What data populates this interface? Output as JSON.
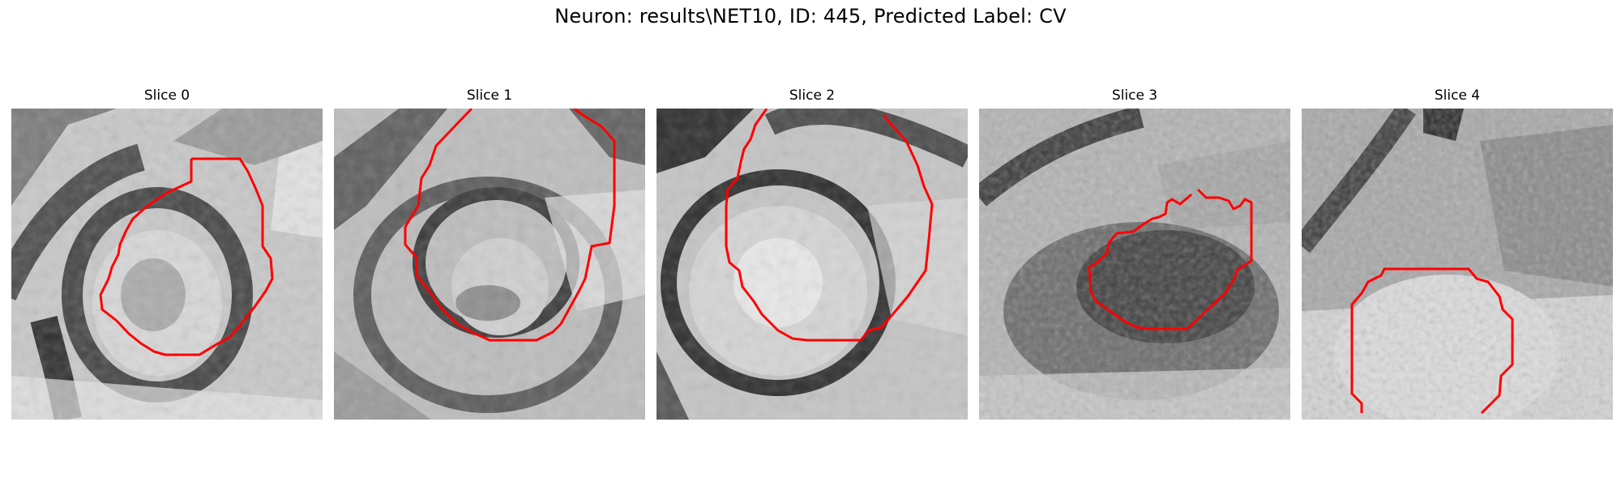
{
  "figure": {
    "title": "Neuron: results\\NET10, ID: 445, Predicted Label: CV",
    "contour_color": "#ff0000"
  },
  "panels": [
    {
      "title": "Slice 0"
    },
    {
      "title": "Slice 1"
    },
    {
      "title": "Slice 2"
    },
    {
      "title": "Slice 3"
    },
    {
      "title": "Slice 4"
    }
  ]
}
